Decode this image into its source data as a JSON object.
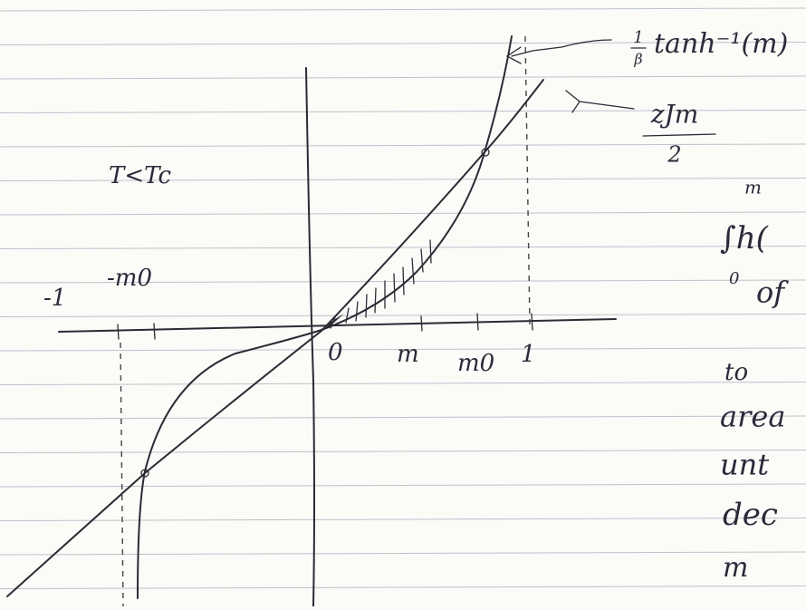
{
  "labels": {
    "tanh_inverse": {
      "numerator": "1",
      "denominator": "β",
      "text": "tanh⁻¹(m)"
    },
    "mean_field": {
      "numerator": "zJm",
      "denominator": "2"
    },
    "condition": "T<Tc",
    "axis": {
      "minus_one": "-1",
      "minus_m0": "-m0",
      "origin": "0",
      "m": "m",
      "m0": "m0",
      "one": "1"
    }
  },
  "side_note": {
    "lines": [
      "m",
      "∫h(",
      "0",
      "of",
      "to",
      "area",
      "unt",
      "dec",
      "m"
    ]
  }
}
